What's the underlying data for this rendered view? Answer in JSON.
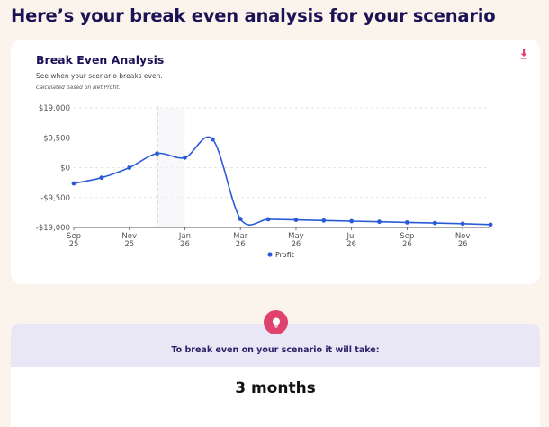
{
  "page": {
    "title": "Here’s your break even analysis for your scenario"
  },
  "chart_card": {
    "title": "Break Even Analysis",
    "subtitle": "See when your scenario breaks even.",
    "note": "Calculated based on Net Profit.",
    "download_icon": "download-icon"
  },
  "chart_data": {
    "type": "line",
    "title": "Break Even Analysis",
    "xlabel": "",
    "ylabel": "",
    "ylim": [
      -19000,
      19000
    ],
    "yticks": [
      19000,
      9500,
      0,
      -9500,
      -19000
    ],
    "ytick_labels": [
      "$19,000",
      "$9,500",
      "$0",
      "-$9,500",
      "-$19,000"
    ],
    "x": [
      "Sep 25",
      "Oct 25",
      "Nov 25",
      "Dec 25",
      "Jan 26",
      "Feb 26",
      "Mar 26",
      "Apr 26",
      "May 26",
      "Jun 26",
      "Jul 26",
      "Aug 26",
      "Sep 26",
      "Oct 26",
      "Nov 26",
      "Dec 26"
    ],
    "xtick_labels": [
      {
        "month": "Sep",
        "year": "25"
      },
      {
        "month": "Nov",
        "year": "25"
      },
      {
        "month": "Jan",
        "year": "26"
      },
      {
        "month": "Mar",
        "year": "26"
      },
      {
        "month": "May",
        "year": "26"
      },
      {
        "month": "Jul",
        "year": "26"
      },
      {
        "month": "Sep",
        "year": "26"
      },
      {
        "month": "Nov",
        "year": "26"
      }
    ],
    "series": [
      {
        "name": "Profit",
        "color": "#2a5bd7",
        "values": [
          -5000,
          -3200,
          0,
          4500,
          3200,
          9000,
          -16300,
          -16400,
          -16600,
          -16800,
          -17000,
          -17200,
          -17400,
          -17600,
          -17800,
          -18100
        ]
      }
    ],
    "break_even_marker": {
      "x": "Dec 25",
      "color": "#d93a3a",
      "style": "dashed"
    },
    "grid": true,
    "legend": "bottom-center"
  },
  "result": {
    "label": "To break even on your scenario it will take:",
    "value": "3 months",
    "badge_icon": "lightbulb-icon",
    "badge_color": "#e0426e"
  }
}
